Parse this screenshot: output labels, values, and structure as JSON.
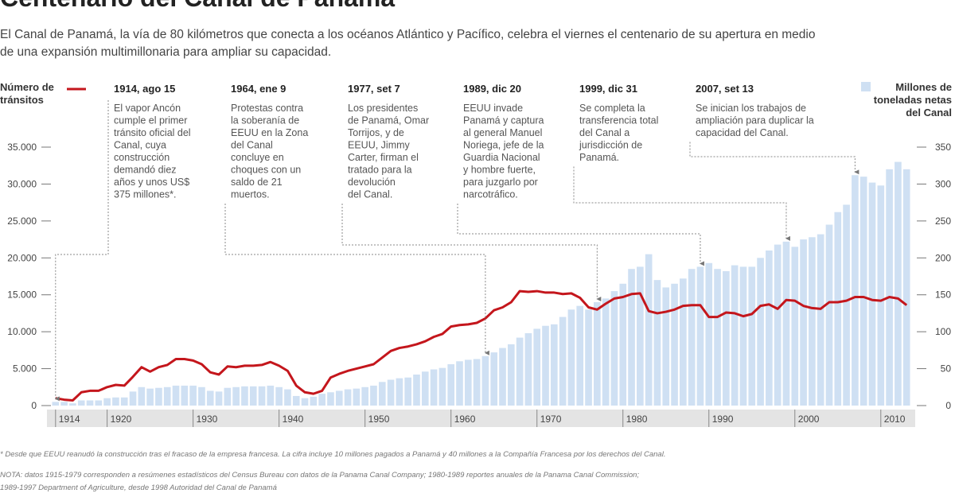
{
  "chart_data": {
    "type": "bar-line",
    "title": "Centenario del Canal de Panamá",
    "subtitle": [
      "El Canal de Panamá, la vía de 80 kilómetros que conecta a los océanos Atlántico y Pacífico, celebra el viernes el centenario de su apertura en medio",
      "de una expansión multimillonaria para ampliar su capacidad."
    ],
    "x": [
      1914,
      1915,
      1916,
      1917,
      1918,
      1919,
      1920,
      1921,
      1922,
      1923,
      1924,
      1925,
      1926,
      1927,
      1928,
      1929,
      1930,
      1931,
      1932,
      1933,
      1934,
      1935,
      1936,
      1937,
      1938,
      1939,
      1940,
      1941,
      1942,
      1943,
      1944,
      1945,
      1946,
      1947,
      1948,
      1949,
      1950,
      1951,
      1952,
      1953,
      1954,
      1955,
      1956,
      1957,
      1958,
      1959,
      1960,
      1961,
      1962,
      1963,
      1964,
      1965,
      1966,
      1967,
      1968,
      1969,
      1970,
      1971,
      1972,
      1973,
      1974,
      1975,
      1976,
      1977,
      1978,
      1979,
      1980,
      1981,
      1982,
      1983,
      1984,
      1985,
      1986,
      1987,
      1988,
      1989,
      1990,
      1991,
      1992,
      1993,
      1994,
      1995,
      1996,
      1997,
      1998,
      1999,
      2000,
      2001,
      2002,
      2003,
      2004,
      2005,
      2006,
      2007,
      2008,
      2009,
      2010,
      2011,
      2012,
      2013
    ],
    "series": [
      {
        "name": "Número de tránsitos",
        "color": "#c4161c",
        "kind": "line",
        "axis": "y",
        "values": [
          1000,
          800,
          700,
          1800,
          2000,
          2000,
          2500,
          2800,
          2700,
          3900,
          5200,
          4600,
          5200,
          5500,
          6300,
          6300,
          6100,
          5600,
          4500,
          4200,
          5300,
          5200,
          5400,
          5400,
          5500,
          5900,
          5400,
          4700,
          2700,
          1800,
          1600,
          2000,
          3800,
          4300,
          4700,
          5000,
          5300,
          5600,
          6500,
          7400,
          7800,
          8000,
          8300,
          8700,
          9300,
          9700,
          10700,
          10900,
          11000,
          11200,
          11800,
          12900,
          13300,
          14000,
          15500,
          15400,
          15500,
          15300,
          15300,
          15100,
          15200,
          14600,
          13300,
          13000,
          13800,
          14500,
          14700,
          15100,
          15200,
          12800,
          12500,
          12700,
          13000,
          13500,
          13600,
          13600,
          12000,
          12000,
          12600,
          12500,
          12100,
          12400,
          13500,
          13700,
          13100,
          14300,
          14200,
          13500,
          13200,
          13100,
          14000,
          14000,
          14200,
          14700,
          14700,
          14300,
          14200,
          14700,
          14500,
          13600
        ]
      },
      {
        "name": "Millones de toneladas netas del Canal",
        "color": "#cfe0f3",
        "kind": "bar",
        "axis": "y2",
        "values": [
          5,
          5,
          3,
          7,
          7,
          7,
          10,
          11,
          11,
          19,
          25,
          23,
          24,
          25,
          27,
          27,
          27,
          25,
          20,
          19,
          24,
          25,
          26,
          26,
          26,
          27,
          25,
          22,
          13,
          10,
          12,
          16,
          18,
          20,
          22,
          23,
          25,
          27,
          32,
          35,
          37,
          38,
          42,
          46,
          49,
          51,
          56,
          60,
          62,
          63,
          67,
          72,
          78,
          83,
          92,
          98,
          104,
          108,
          110,
          120,
          130,
          135,
          130,
          140,
          145,
          155,
          165,
          185,
          188,
          205,
          170,
          160,
          165,
          172,
          185,
          188,
          193,
          185,
          182,
          190,
          188,
          188,
          200,
          210,
          218,
          222,
          215,
          225,
          228,
          232,
          245,
          262,
          272,
          312,
          310,
          302,
          298,
          320,
          330,
          320
        ]
      }
    ],
    "xlim": [
      1913,
      2014
    ],
    "xticks": [
      1914,
      1920,
      1930,
      1940,
      1950,
      1960,
      1970,
      1980,
      1990,
      2000,
      2010
    ],
    "ylim": [
      0,
      35000
    ],
    "yticks": [
      0,
      {
        "value": 5000,
        "label": "5.000"
      },
      {
        "value": 10000,
        "label": "10.000"
      },
      {
        "value": 15000,
        "label": "15.000"
      },
      {
        "value": 20000,
        "label": "20.000"
      },
      {
        "value": 25000,
        "label": "25.000"
      },
      {
        "value": 30000,
        "label": "30.000"
      },
      {
        "value": 35000,
        "label": "35.000"
      }
    ],
    "y2lim": [
      0,
      350
    ],
    "y2ticks": [
      0,
      50,
      100,
      150,
      200,
      250,
      300,
      350
    ],
    "annotations": [
      {
        "label": "1914, ago 15",
        "x": 1914,
        "lines": [
          "El vapor Ancón",
          "cumple el primer",
          "tránsito oficial del",
          "Canal, cuya",
          "construcción",
          "demandó diez",
          "años y unos US$",
          "375 millones*."
        ]
      },
      {
        "label": "1964, ene 9",
        "x": 1964,
        "lines": [
          "Protestas contra",
          "la soberanía de",
          "EEUU en la Zona",
          "del Canal",
          "concluye en",
          "choques con un",
          "saldo de 21",
          "muertos."
        ]
      },
      {
        "label": "1977, set 7",
        "x": 1977,
        "lines": [
          "Los presidentes",
          "de Panamá, Omar",
          "Torrijos, y de",
          "EEUU, Jimmy",
          "Carter, firman el",
          "tratado para la",
          "devolución",
          "del Canal."
        ]
      },
      {
        "label": "1989, dic 20",
        "x": 1989,
        "lines": [
          "EEUU invade",
          "Panamá y captura",
          "al general Manuel",
          "Noriega, jefe de la",
          "Guardia Nacional",
          "y hombre fuerte,",
          "para juzgarlo por",
          "narcotráfico."
        ]
      },
      {
        "label": "1999, dic 31",
        "x": 1999,
        "lines": [
          "Se completa la",
          "transferencia total",
          "del Canal a",
          "jurisdicción de",
          "Panamá."
        ]
      },
      {
        "label": "2007, set 13",
        "x": 2007,
        "lines": [
          "Se inician los trabajos de",
          "ampliación para duplicar la",
          "capacidad del Canal."
        ]
      }
    ],
    "footnotes": [
      "* Desde que EEUU reanudó la construcción tras el fracaso de la empresa francesa. La cifra incluye 10 millones pagados a Panamá y 40 millones a la Compañía Francesa por los derechos del Canal.",
      "NOTA: datos 1915-1979 corresponden a resúmenes estadísticos del Census Bureau con datos de la Panama Canal Company; 1980-1989 reportes anuales de la Panama Canal Commission;",
      "1989-1997 Department of Agriculture, desde 1998 Autoridad del Canal de Panamá"
    ]
  }
}
